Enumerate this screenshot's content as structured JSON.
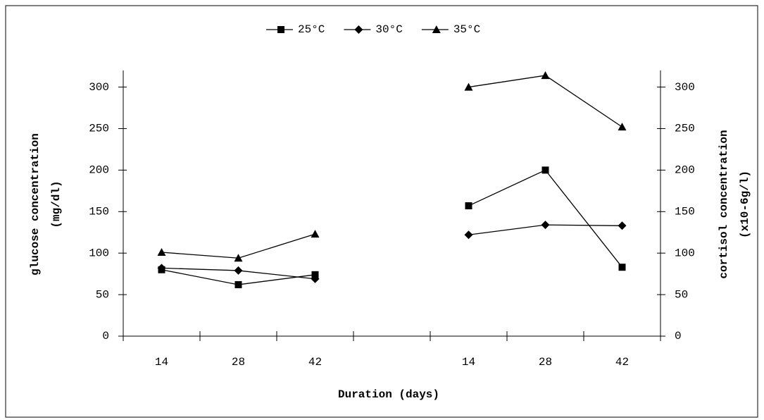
{
  "chart_data": {
    "type": "line",
    "xlabel": "Duration (days)",
    "ylabel": [
      "glucose concentration",
      "(mg/dl)"
    ],
    "y2label": [
      "cortisol concentration",
      "(x10-6g/l)"
    ],
    "categories": [
      "14",
      "28",
      "42",
      null,
      "14",
      "28",
      "42"
    ],
    "series": [
      {
        "name": "25°C",
        "color": "#000000",
        "marker": "square",
        "values": [
          80,
          62,
          74,
          null,
          157,
          200,
          83
        ]
      },
      {
        "name": "30°C",
        "color": "#000000",
        "marker": "diamond",
        "values": [
          82,
          79,
          69,
          null,
          122,
          134,
          133
        ]
      },
      {
        "name": "35°C",
        "color": "#000000",
        "marker": "triangle",
        "values": [
          101,
          94,
          123,
          null,
          300,
          314,
          252
        ]
      }
    ],
    "ylim": [
      0,
      320
    ],
    "yticks": [
      0,
      50,
      100,
      150,
      200,
      250,
      300
    ],
    "y2lim": [
      0,
      320
    ],
    "y2ticks": [
      0,
      50,
      100,
      150,
      200,
      250,
      300
    ],
    "grid": false,
    "legend": "top"
  }
}
